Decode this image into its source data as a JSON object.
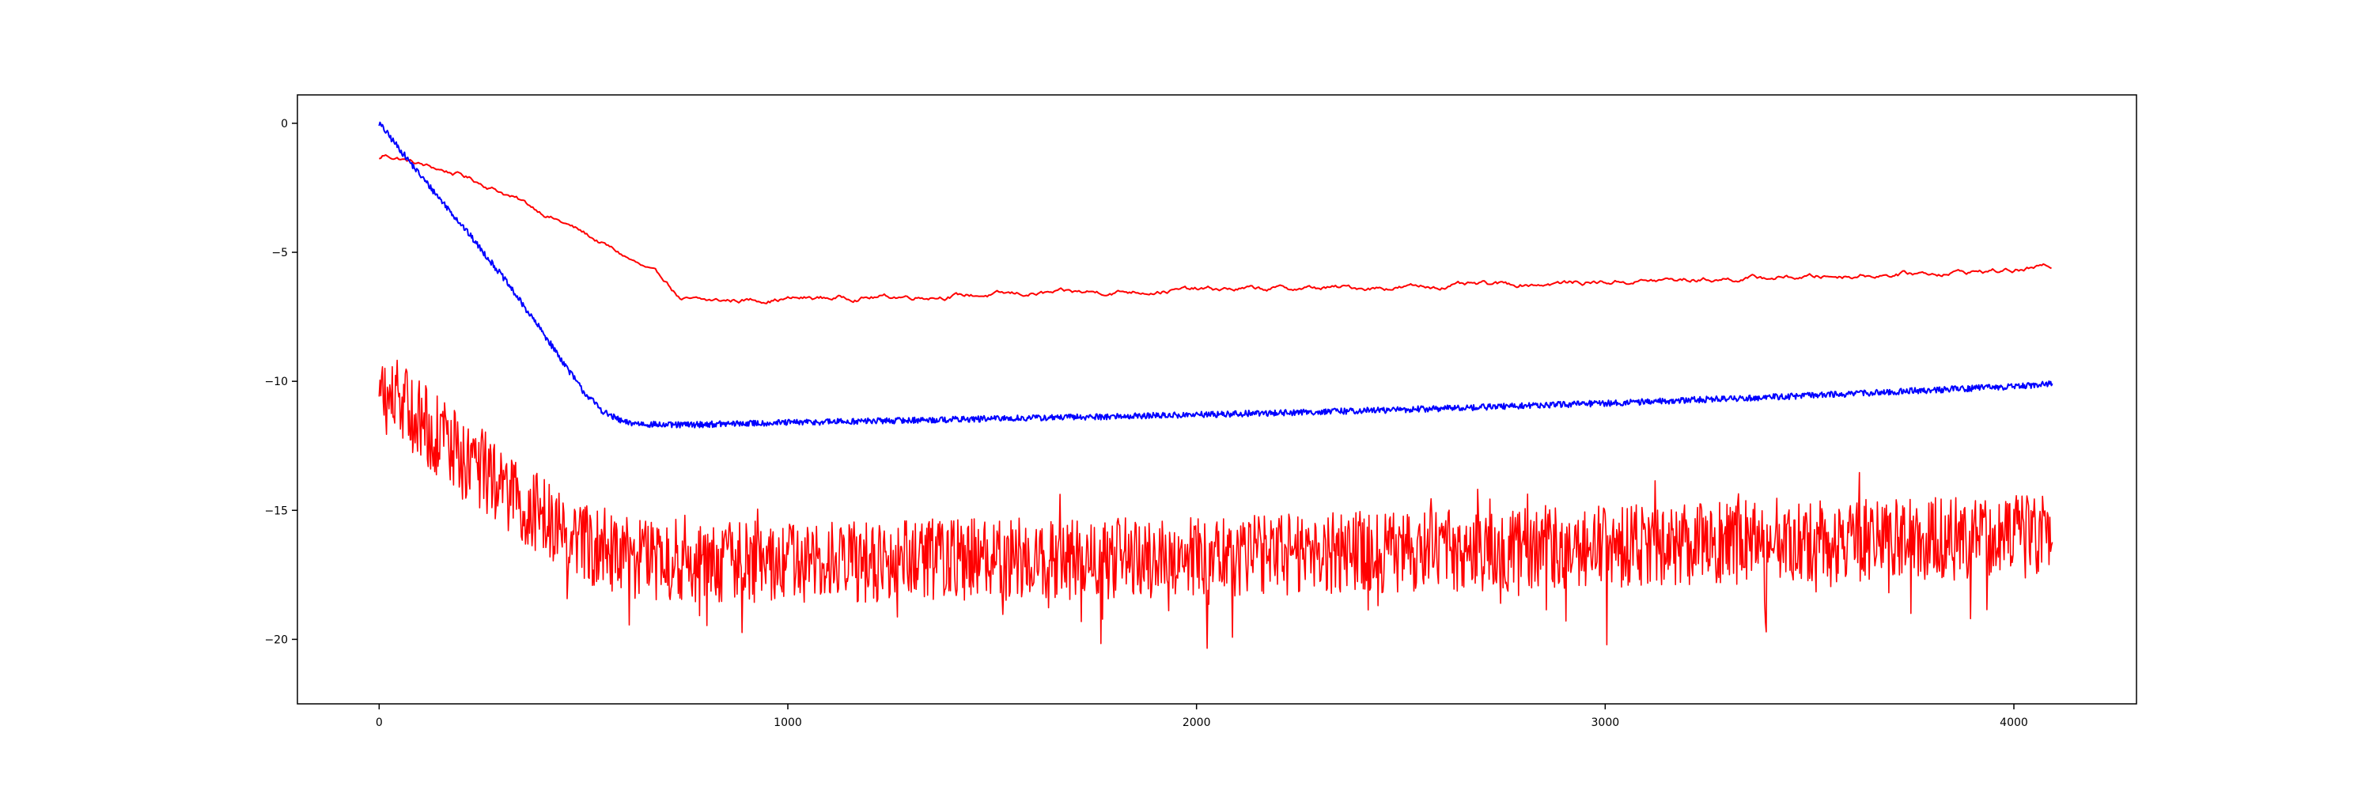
{
  "chart_data": {
    "type": "line",
    "title": "",
    "xlabel": "",
    "ylabel": "",
    "xlim": [
      -200,
      4300
    ],
    "ylim": [
      -22.5,
      1.1
    ],
    "x_ticks": [
      0,
      1000,
      2000,
      3000,
      4000
    ],
    "y_ticks": [
      0,
      -5,
      -10,
      -15,
      -20
    ],
    "x_tick_labels": [
      "0",
      "1000",
      "2000",
      "3000",
      "4000"
    ],
    "y_tick_labels": [
      "0",
      "−5",
      "−10",
      "−15",
      "−20"
    ],
    "grid": false,
    "legend": "none",
    "x_max": 4095,
    "series": [
      {
        "color": "#ff0000",
        "style": "smooth",
        "keypoints": [
          [
            0,
            -1.4
          ],
          [
            10,
            -1.25
          ],
          [
            50,
            -1.35
          ],
          [
            100,
            -1.6
          ],
          [
            200,
            -2.0
          ],
          [
            300,
            -2.65
          ],
          [
            400,
            -3.45
          ],
          [
            500,
            -4.25
          ],
          [
            600,
            -5.15
          ],
          [
            700,
            -6.1
          ],
          [
            740,
            -6.85
          ],
          [
            800,
            -6.9
          ],
          [
            1000,
            -6.8
          ],
          [
            1500,
            -6.65
          ],
          [
            2000,
            -6.45
          ],
          [
            2500,
            -6.35
          ],
          [
            3000,
            -6.15
          ],
          [
            3500,
            -5.95
          ],
          [
            4000,
            -5.7
          ],
          [
            4095,
            -5.55
          ]
        ],
        "noise": 0.06
      },
      {
        "color": "#0000ff",
        "style": "noisy",
        "keypoints": [
          [
            0,
            0.0
          ],
          [
            100,
            -2.0
          ],
          [
            200,
            -3.9
          ],
          [
            300,
            -5.9
          ],
          [
            400,
            -8.1
          ],
          [
            500,
            -10.4
          ],
          [
            550,
            -11.2
          ],
          [
            600,
            -11.6
          ],
          [
            700,
            -11.7
          ],
          [
            1000,
            -11.6
          ],
          [
            1500,
            -11.45
          ],
          [
            2000,
            -11.3
          ],
          [
            2500,
            -11.1
          ],
          [
            3000,
            -10.85
          ],
          [
            3500,
            -10.55
          ],
          [
            4000,
            -10.2
          ],
          [
            4095,
            -10.1
          ]
        ],
        "noise": 0.12
      },
      {
        "color": "#ff0000",
        "style": "very-noisy",
        "keypoints": [
          [
            0,
            -10.5
          ],
          [
            50,
            -10.8
          ],
          [
            100,
            -11.6
          ],
          [
            200,
            -12.8
          ],
          [
            300,
            -14.0
          ],
          [
            400,
            -15.3
          ],
          [
            500,
            -16.2
          ],
          [
            600,
            -16.8
          ],
          [
            800,
            -17.0
          ],
          [
            1000,
            -17.0
          ],
          [
            1500,
            -16.9
          ],
          [
            2000,
            -16.8
          ],
          [
            2500,
            -16.6
          ],
          [
            3000,
            -16.4
          ],
          [
            3500,
            -16.2
          ],
          [
            4000,
            -16.0
          ],
          [
            4095,
            -15.9
          ]
        ],
        "noise": 1.6
      }
    ]
  }
}
